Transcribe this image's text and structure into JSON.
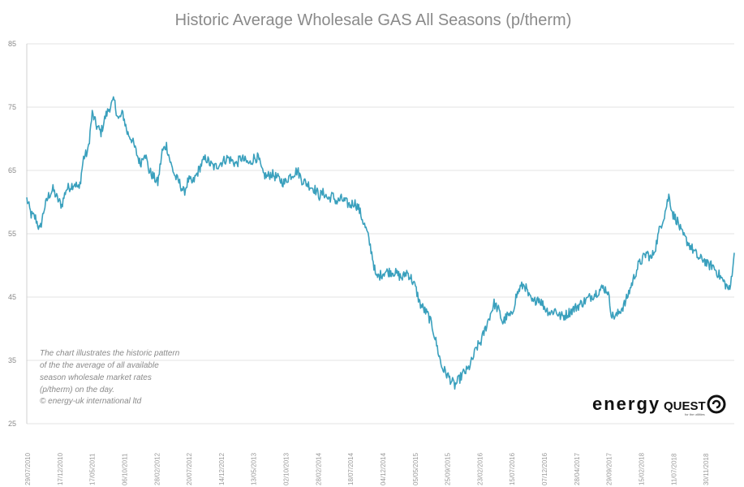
{
  "chart_data": {
    "type": "line",
    "title": "Historic Average Wholesale GAS All Seasons (p/therm)",
    "xlabel": "",
    "ylabel": "",
    "ylim": [
      25,
      85
    ],
    "yticks": [
      25,
      35,
      45,
      55,
      65,
      75,
      85
    ],
    "grid": true,
    "legend": "none",
    "x_tick_labels": [
      "29/07/2010",
      "17/12/2010",
      "17/05/2011",
      "06/10/2011",
      "28/02/2012",
      "20/07/2012",
      "14/12/2012",
      "13/05/2013",
      "02/10/2013",
      "28/02/2014",
      "18/07/2014",
      "04/12/2014",
      "05/05/2015",
      "25/09/2015",
      "23/02/2016",
      "15/07/2016",
      "07/12/2016",
      "28/04/2017",
      "29/09/2017",
      "15/02/2018",
      "11/07/2018",
      "30/11/2018"
    ],
    "series": [
      {
        "color": "#3aa0bd",
        "values": [
          60.5,
          58,
          57.5,
          55.5,
          59,
          61,
          62,
          60.5,
          59.5,
          62,
          62.5,
          63,
          62,
          67,
          68,
          74,
          72,
          71,
          73.5,
          75,
          76,
          73,
          74,
          71,
          70,
          68,
          66,
          68,
          65,
          64,
          63,
          68,
          69,
          66,
          64,
          63,
          61.5,
          63.5,
          63,
          64.5,
          66,
          67,
          66,
          65.5,
          66,
          66.5,
          67,
          66.5,
          66,
          67,
          66.5,
          66,
          67,
          67,
          64.5,
          64,
          64.5,
          64,
          63.5,
          63,
          64,
          64.5,
          65,
          63.5,
          63,
          62.5,
          62,
          61,
          61.5,
          60.5,
          61,
          60,
          60.5,
          60,
          59.5,
          60,
          59,
          57,
          55,
          52,
          48,
          48.5,
          49,
          49,
          49,
          48.5,
          48,
          49,
          48,
          46.5,
          44,
          43,
          42,
          40,
          37,
          34,
          33,
          32,
          31,
          32,
          33,
          33.5,
          35,
          37,
          38,
          40,
          42,
          44,
          43,
          41,
          42,
          42,
          45,
          46.5,
          47,
          45,
          44,
          45,
          44,
          43,
          42.5,
          43,
          42,
          42,
          42.5,
          43,
          43.5,
          44,
          44.5,
          45,
          45.5,
          46,
          46.5,
          46,
          42,
          42,
          43,
          44,
          46,
          48,
          50,
          51,
          52,
          51,
          53,
          56,
          58,
          61,
          58,
          57,
          55,
          54,
          53,
          52,
          51,
          51,
          50,
          50,
          49,
          48,
          47,
          46,
          52
        ]
      }
    ],
    "annotation": [
      "The chart illustrates the historic pattern",
      "of the the average of all available",
      "season wholesale market rates",
      "(p/therm) on the day.",
      "© energy-uk international ltd"
    ],
    "logo": {
      "main": "energy",
      "accent": "QUEST",
      "tagline": "for the utilities"
    }
  }
}
